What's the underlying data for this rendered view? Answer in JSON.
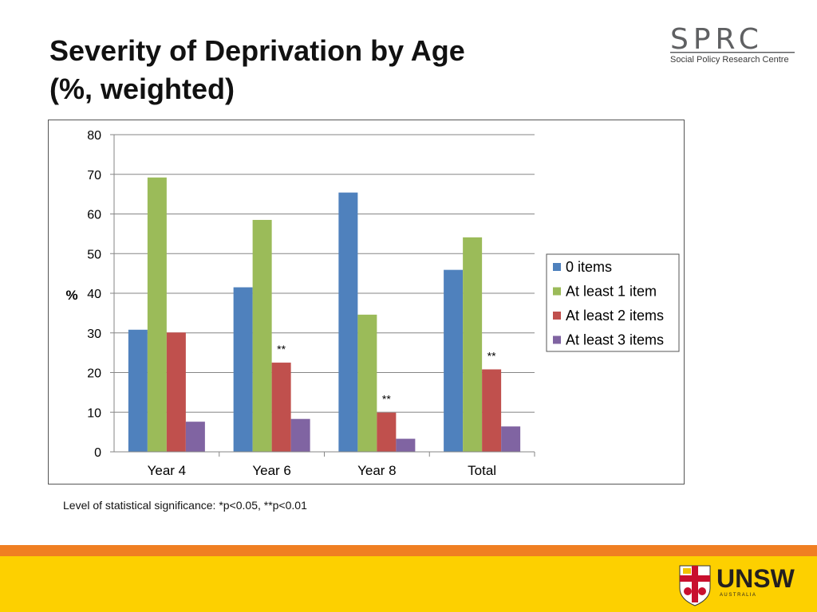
{
  "slide": {
    "title_line1": "Severity of Deprivation by Age",
    "title_line2": "(%, weighted)",
    "footnote": "Level of statistical significance: *p<0.05, **p<0.01"
  },
  "logos": {
    "sprc": {
      "letters": "SPRC",
      "subtitle": "Social Policy Research Centre"
    },
    "unsw": {
      "wordmark": "UNSW",
      "subtitle": "A U S T R A L I A"
    }
  },
  "colors": {
    "orange_band": "#f07f22",
    "yellow_band": "#fdd000",
    "series": [
      "#4f81bd",
      "#9bbb59",
      "#c0504d",
      "#8064a2"
    ]
  },
  "chart_data": {
    "type": "bar",
    "title": "",
    "xlabel": "",
    "ylabel": "%",
    "ylim": [
      0,
      80
    ],
    "yticks": [
      "0",
      "10",
      "20",
      "30",
      "40",
      "50",
      "60",
      "70",
      "80"
    ],
    "grid": true,
    "legend_position": "right",
    "categories": [
      "Year 4",
      "Year 6",
      "Year 8",
      "Total"
    ],
    "series": [
      {
        "name": "0 items",
        "values": [
          30.8,
          41.5,
          65.4,
          45.9
        ]
      },
      {
        "name": "At least 1 item",
        "values": [
          69.2,
          58.5,
          34.6,
          54.1
        ]
      },
      {
        "name": "At least 2 items",
        "values": [
          30.1,
          22.5,
          9.9,
          20.8
        ]
      },
      {
        "name": "At least 3 items",
        "values": [
          7.6,
          8.3,
          3.3,
          6.4
        ]
      }
    ],
    "annotations": [
      {
        "series": 2,
        "category": 1,
        "text": "**"
      },
      {
        "series": 2,
        "category": 2,
        "text": "**"
      },
      {
        "series": 2,
        "category": 3,
        "text": "**"
      }
    ]
  }
}
